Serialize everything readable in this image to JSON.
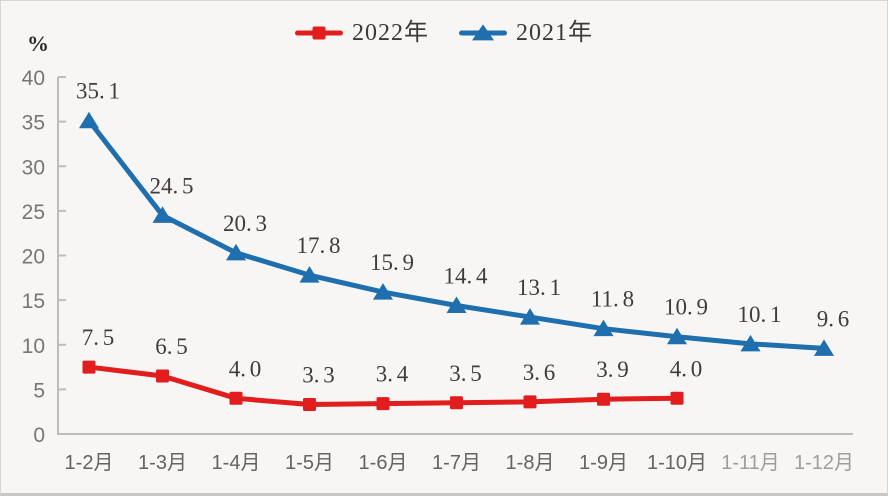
{
  "chart_data": {
    "type": "line",
    "title": "",
    "ylabel": "%",
    "xlabel": "",
    "ylim": [
      0,
      40
    ],
    "ytick_step": 5,
    "grid": false,
    "legend_position": "top-center",
    "categories": [
      "1-2月",
      "1-3月",
      "1-4月",
      "1-5月",
      "1-6月",
      "1-7月",
      "1-8月",
      "1-9月",
      "1-10月",
      "1-11月",
      "1-12月"
    ],
    "series": [
      {
        "name": "2022年",
        "color": "#e11d1d",
        "marker": "square",
        "values": [
          7.5,
          6.5,
          4.0,
          3.3,
          3.4,
          3.5,
          3.6,
          3.9,
          4.0
        ]
      },
      {
        "name": "2021年",
        "color": "#1f6fae",
        "marker": "triangle",
        "values": [
          35.1,
          24.5,
          20.3,
          17.8,
          15.9,
          14.4,
          13.1,
          11.8,
          10.9,
          10.1,
          9.6
        ]
      }
    ],
    "faded_category_indices": [
      9,
      10
    ],
    "colors": {
      "axis": "#bdbdbd",
      "ytick_label": "#767676",
      "category_label": "#636363",
      "data_label": "#3d3d3d",
      "background": "#f7f6f4"
    }
  }
}
